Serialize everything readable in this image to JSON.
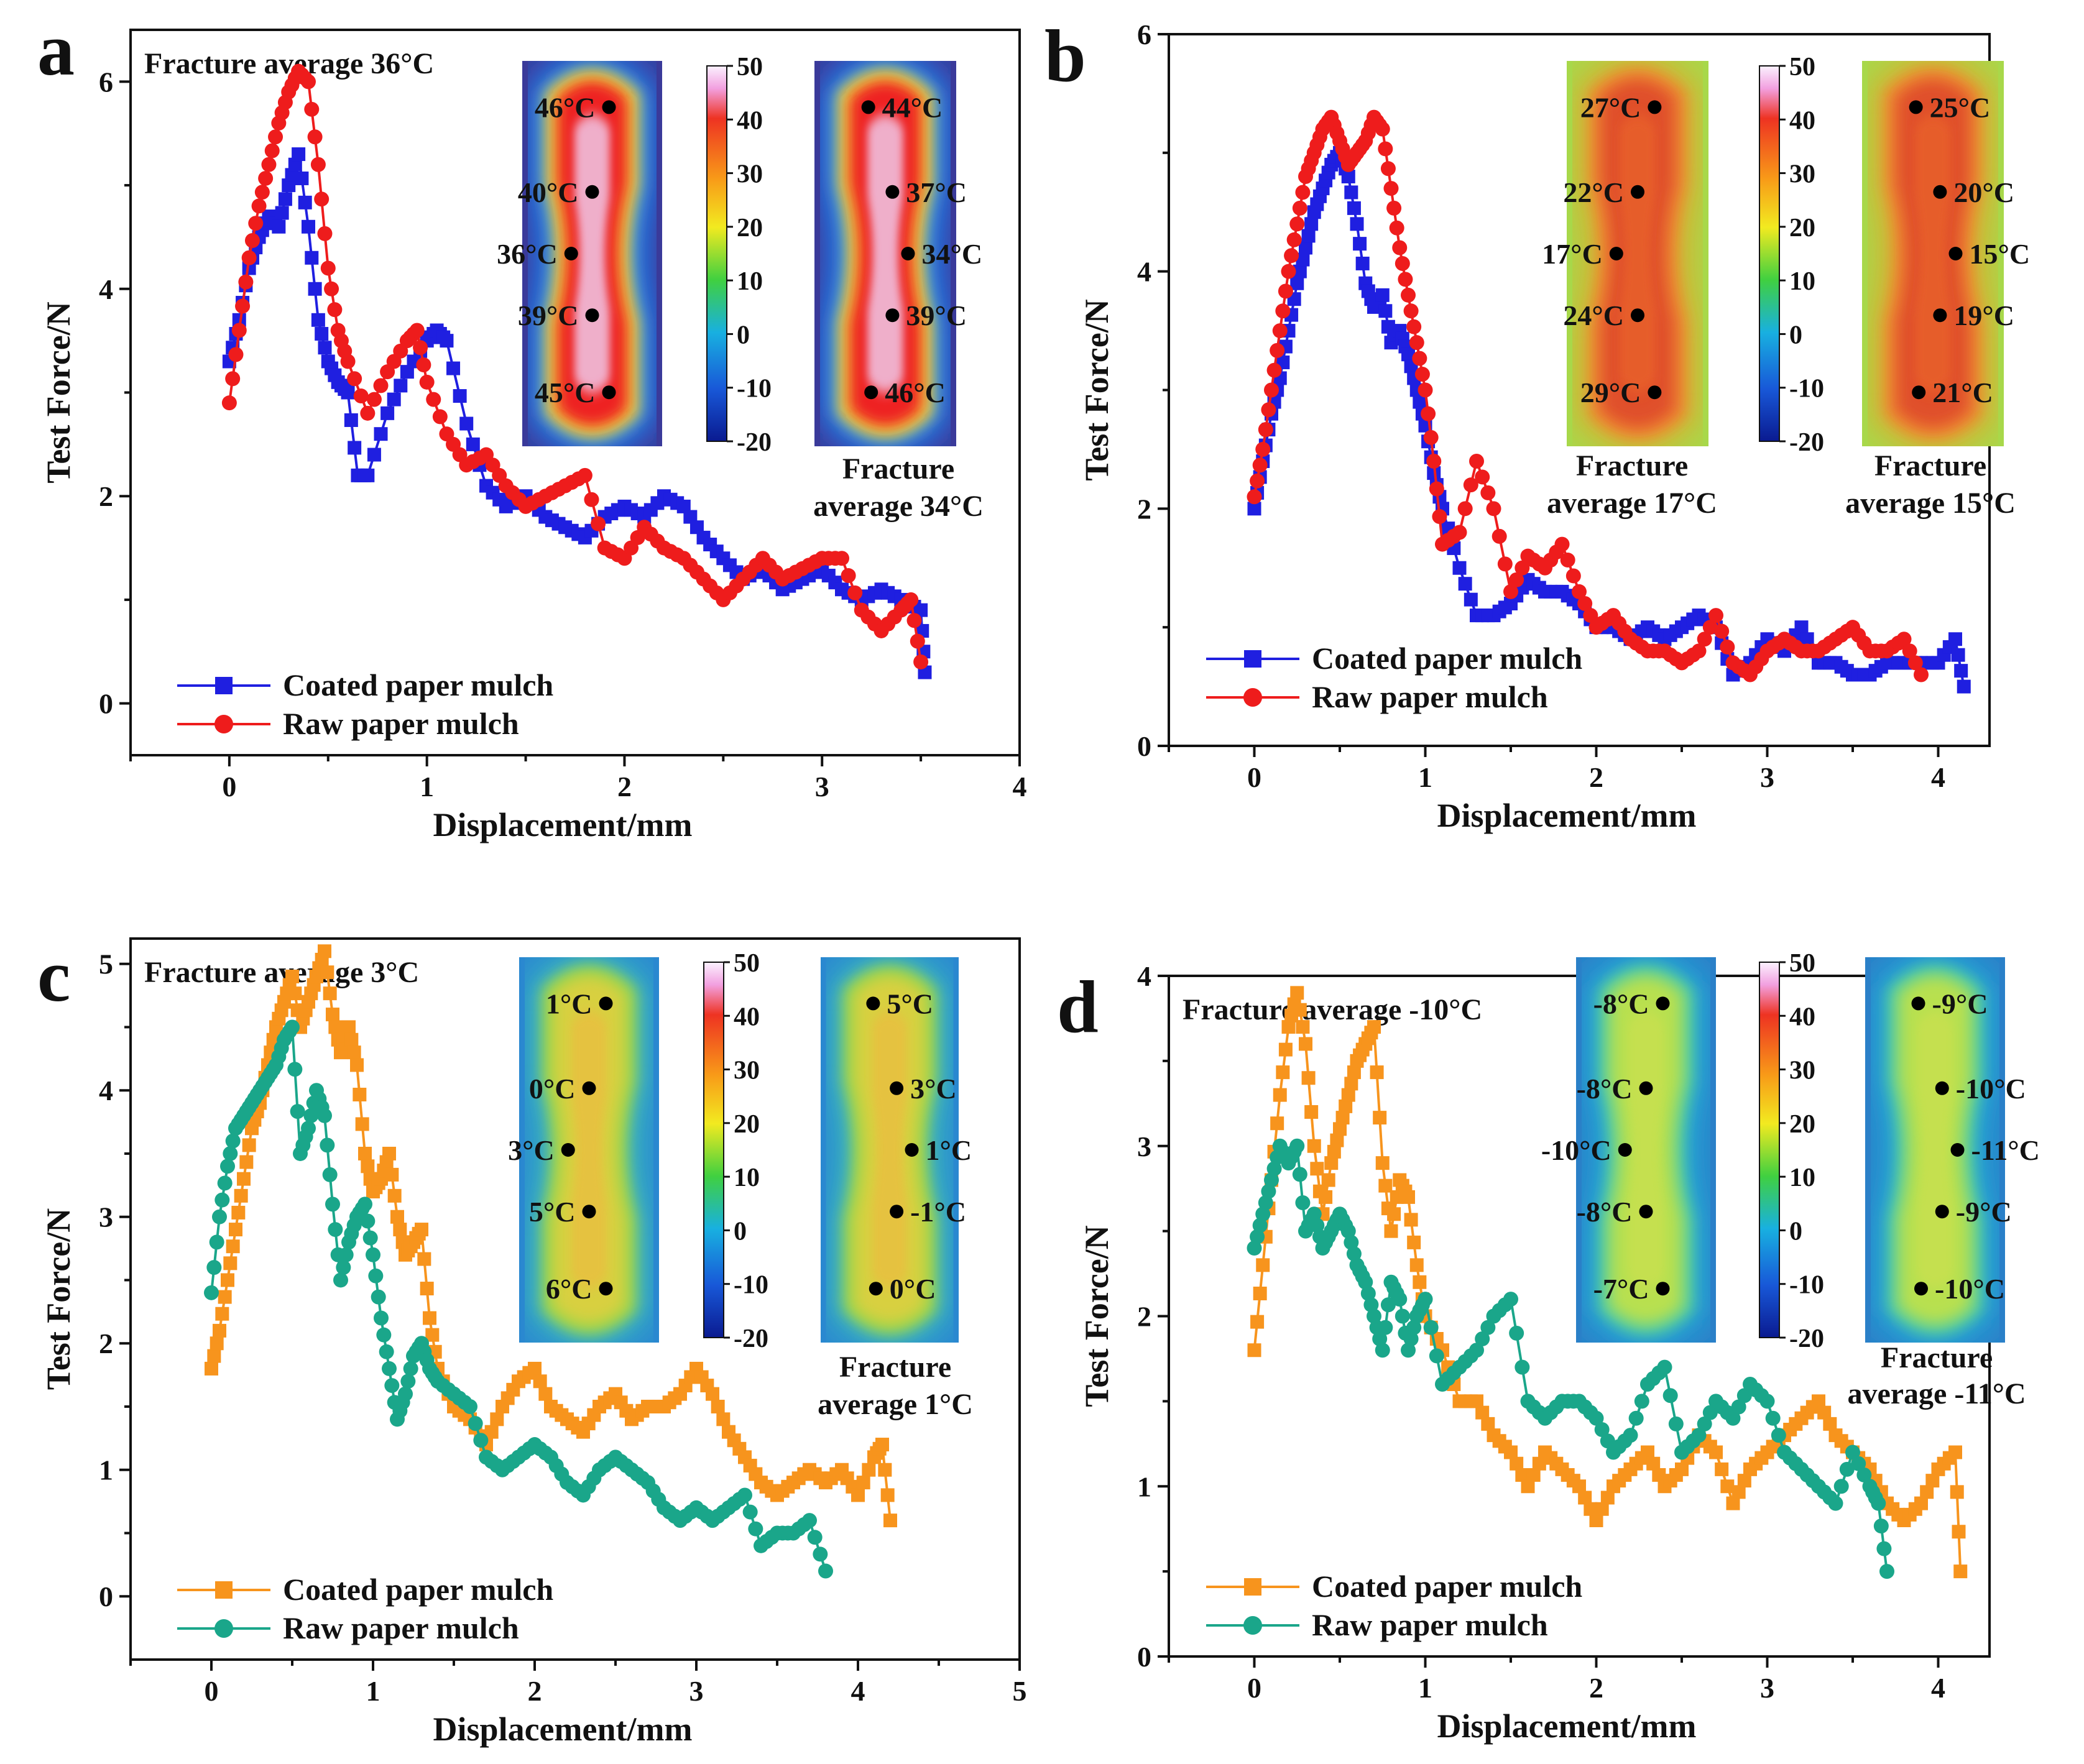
{
  "legend_labels": {
    "coated": "Coated paper mulch",
    "raw": "Raw paper mulch"
  },
  "colorbar": {
    "ticks": [
      "50",
      "40",
      "30",
      "20",
      "10",
      "0",
      "-10",
      "-20"
    ]
  },
  "chart_data": [
    {
      "panel": "a",
      "type": "line",
      "xlabel": "Displacement/mm",
      "ylabel": "Test Force/N",
      "xlim": [
        -0.5,
        4
      ],
      "ylim": [
        -0.5,
        6.5
      ],
      "xticks": [
        "0",
        "1",
        "2",
        "3",
        "4"
      ],
      "yticks": [
        "0",
        "2",
        "4",
        "6"
      ],
      "title": "Fracture  average 36°C",
      "inset_caption": [
        "Fracture",
        "average 34°C"
      ],
      "inset_style": "hot",
      "temps_left": [
        "46°C",
        "40°C",
        "36°C",
        "39°C",
        "45°C"
      ],
      "temps_right": [
        "44°C",
        "37°C",
        "34°C",
        "39°C",
        "46°C"
      ],
      "series": [
        {
          "name": "Coated paper mulch",
          "color": "#1f1fe0",
          "marker": "square",
          "x": [
            0,
            0.05,
            0.1,
            0.15,
            0.2,
            0.25,
            0.3,
            0.35,
            0.4,
            0.45,
            0.5,
            0.55,
            0.6,
            0.65,
            0.7,
            0.8,
            0.9,
            1.0,
            1.05,
            1.1,
            1.2,
            1.3,
            1.4,
            1.5,
            1.6,
            1.7,
            1.8,
            1.9,
            2.0,
            2.1,
            2.2,
            2.3,
            2.4,
            2.5,
            2.6,
            2.7,
            2.8,
            2.9,
            3.0,
            3.1,
            3.2,
            3.3,
            3.4,
            3.5,
            3.52
          ],
          "y": [
            3.3,
            3.7,
            4.2,
            4.5,
            4.7,
            4.6,
            5.0,
            5.3,
            4.6,
            3.7,
            3.3,
            3.1,
            3.0,
            2.2,
            2.2,
            2.8,
            3.2,
            3.5,
            3.6,
            3.5,
            2.7,
            2.1,
            1.9,
            2.0,
            1.8,
            1.7,
            1.6,
            1.8,
            1.9,
            1.8,
            2.0,
            1.9,
            1.6,
            1.4,
            1.2,
            1.3,
            1.1,
            1.2,
            1.3,
            1.1,
            1.0,
            1.1,
            1.0,
            0.9,
            0.3
          ]
        },
        {
          "name": "Raw paper mulch",
          "color": "#ee1c1c",
          "marker": "circle",
          "x": [
            0,
            0.05,
            0.1,
            0.15,
            0.2,
            0.25,
            0.3,
            0.35,
            0.4,
            0.45,
            0.5,
            0.55,
            0.6,
            0.7,
            0.8,
            0.9,
            0.95,
            1.0,
            1.1,
            1.2,
            1.3,
            1.4,
            1.5,
            1.6,
            1.7,
            1.8,
            1.9,
            2.0,
            2.1,
            2.2,
            2.3,
            2.4,
            2.5,
            2.6,
            2.7,
            2.8,
            2.9,
            3.0,
            3.1,
            3.2,
            3.3,
            3.4,
            3.45,
            3.5
          ],
          "y": [
            2.9,
            3.6,
            4.3,
            4.8,
            5.2,
            5.6,
            5.9,
            6.1,
            6.0,
            5.2,
            4.2,
            3.6,
            3.3,
            2.8,
            3.2,
            3.5,
            3.6,
            3.1,
            2.6,
            2.3,
            2.4,
            2.1,
            1.9,
            2.0,
            2.1,
            2.2,
            1.5,
            1.4,
            1.7,
            1.5,
            1.4,
            1.2,
            1.0,
            1.2,
            1.4,
            1.2,
            1.3,
            1.4,
            1.4,
            0.9,
            0.7,
            0.9,
            1.0,
            0.4
          ]
        }
      ]
    },
    {
      "panel": "b",
      "type": "line",
      "xlabel": "Displacement/mm",
      "ylabel": "Test Force/N",
      "xlim": [
        -0.5,
        4.3
      ],
      "ylim": [
        0,
        6
      ],
      "xticks": [
        "0",
        "1",
        "2",
        "3",
        "4"
      ],
      "yticks": [
        "0",
        "2",
        "4",
        "6"
      ],
      "title": "",
      "inset_captions": [
        [
          "Fracture",
          "average 17°C"
        ],
        [
          "Fracture",
          "average 15°C"
        ]
      ],
      "inset_style": "warm",
      "temps_left": [
        "27°C",
        "22°C",
        "17°C",
        "24°C",
        "29°C"
      ],
      "temps_right": [
        "25°C",
        "20°C",
        "15°C",
        "19°C",
        "21°C"
      ],
      "series": [
        {
          "name": "Coated paper mulch",
          "color": "#1f1fe0",
          "marker": "square",
          "x": [
            0,
            0.05,
            0.1,
            0.15,
            0.2,
            0.25,
            0.3,
            0.35,
            0.4,
            0.45,
            0.5,
            0.55,
            0.6,
            0.65,
            0.7,
            0.75,
            0.8,
            0.85,
            0.9,
            0.95,
            1.0,
            1.05,
            1.1,
            1.2,
            1.3,
            1.4,
            1.5,
            1.6,
            1.7,
            1.8,
            1.9,
            2.0,
            2.1,
            2.2,
            2.3,
            2.4,
            2.5,
            2.6,
            2.7,
            2.8,
            2.9,
            3.0,
            3.1,
            3.2,
            3.3,
            3.4,
            3.5,
            3.6,
            3.7,
            3.8,
            3.9,
            4.0,
            4.1,
            4.15
          ],
          "y": [
            2.0,
            2.4,
            2.8,
            3.1,
            3.5,
            3.9,
            4.2,
            4.5,
            4.7,
            4.9,
            5.0,
            4.8,
            4.4,
            3.9,
            3.7,
            3.8,
            3.4,
            3.5,
            3.3,
            3.0,
            2.7,
            2.3,
            2.0,
            1.5,
            1.1,
            1.1,
            1.2,
            1.4,
            1.3,
            1.3,
            1.2,
            1.0,
            1.0,
            0.9,
            1.0,
            0.9,
            1.0,
            1.1,
            1.0,
            0.6,
            0.7,
            0.9,
            0.8,
            1.0,
            0.7,
            0.7,
            0.6,
            0.6,
            0.7,
            0.7,
            0.7,
            0.7,
            0.9,
            0.5
          ]
        },
        {
          "name": "Raw paper mulch",
          "color": "#ee1c1c",
          "marker": "circle",
          "x": [
            0,
            0.05,
            0.1,
            0.15,
            0.2,
            0.25,
            0.3,
            0.35,
            0.4,
            0.45,
            0.5,
            0.55,
            0.6,
            0.65,
            0.7,
            0.75,
            0.8,
            0.85,
            0.9,
            0.95,
            1.0,
            1.05,
            1.1,
            1.2,
            1.3,
            1.4,
            1.5,
            1.6,
            1.7,
            1.8,
            1.9,
            2.0,
            2.1,
            2.2,
            2.3,
            2.4,
            2.5,
            2.6,
            2.7,
            2.8,
            2.9,
            3.0,
            3.1,
            3.2,
            3.3,
            3.4,
            3.5,
            3.6,
            3.7,
            3.8,
            3.9
          ],
          "y": [
            2.1,
            2.5,
            3.0,
            3.5,
            4.0,
            4.4,
            4.8,
            5.0,
            5.2,
            5.3,
            5.1,
            4.9,
            5.0,
            5.1,
            5.3,
            5.2,
            4.7,
            4.2,
            3.8,
            3.4,
            3.0,
            2.4,
            1.7,
            1.8,
            2.4,
            2.0,
            1.3,
            1.6,
            1.5,
            1.7,
            1.3,
            1.0,
            1.1,
            0.9,
            0.8,
            0.8,
            0.7,
            0.8,
            1.1,
            0.7,
            0.6,
            0.8,
            0.9,
            0.8,
            0.8,
            0.9,
            1.0,
            0.8,
            0.8,
            0.9,
            0.6
          ]
        }
      ]
    },
    {
      "panel": "c",
      "type": "line",
      "xlabel": "Displacement/mm",
      "ylabel": "Test Force/N",
      "xlim": [
        -0.5,
        5
      ],
      "ylim": [
        -0.5,
        5.2
      ],
      "xticks": [
        "0",
        "1",
        "2",
        "3",
        "4",
        "5"
      ],
      "yticks": [
        "0",
        "1",
        "2",
        "3",
        "4",
        "5"
      ],
      "title": "Fracture  average 3°C",
      "inset_caption": [
        "Fracture",
        "average 1°C"
      ],
      "inset_style": "cool",
      "temps_left": [
        "1°C",
        "0°C",
        "3°C",
        "5°C",
        "6°C"
      ],
      "temps_right": [
        "5°C",
        "3°C",
        "1°C",
        "-1°C",
        "0°C"
      ],
      "series": [
        {
          "name": "Coated paper mulch",
          "color": "#f7941d",
          "marker": "square",
          "x": [
            0,
            0.05,
            0.1,
            0.15,
            0.2,
            0.25,
            0.3,
            0.35,
            0.4,
            0.45,
            0.5,
            0.55,
            0.6,
            0.65,
            0.7,
            0.75,
            0.8,
            0.85,
            0.9,
            0.95,
            1.0,
            1.05,
            1.1,
            1.15,
            1.2,
            1.25,
            1.3,
            1.35,
            1.4,
            1.5,
            1.6,
            1.7,
            1.8,
            1.9,
            2.0,
            2.1,
            2.2,
            2.3,
            2.4,
            2.5,
            2.6,
            2.7,
            2.8,
            2.9,
            3.0,
            3.1,
            3.2,
            3.3,
            3.4,
            3.5,
            3.6,
            3.7,
            3.8,
            3.9,
            4.0,
            4.1,
            4.15,
            4.2
          ],
          "y": [
            1.8,
            2.1,
            2.5,
            2.9,
            3.3,
            3.7,
            3.9,
            4.2,
            4.5,
            4.7,
            4.9,
            4.5,
            4.7,
            4.9,
            5.1,
            4.6,
            4.3,
            4.5,
            4.2,
            3.5,
            3.2,
            3.3,
            3.5,
            3.0,
            2.7,
            2.8,
            2.9,
            2.2,
            1.8,
            1.5,
            1.4,
            1.2,
            1.5,
            1.7,
            1.8,
            1.5,
            1.4,
            1.3,
            1.5,
            1.6,
            1.4,
            1.5,
            1.5,
            1.6,
            1.8,
            1.6,
            1.3,
            1.1,
            0.9,
            0.8,
            0.9,
            1.0,
            0.9,
            1.0,
            0.8,
            1.1,
            1.2,
            0.6
          ]
        },
        {
          "name": "Raw paper mulch",
          "color": "#1aa68a",
          "marker": "circle",
          "x": [
            0,
            0.05,
            0.1,
            0.15,
            0.2,
            0.25,
            0.3,
            0.35,
            0.4,
            0.45,
            0.5,
            0.55,
            0.6,
            0.65,
            0.7,
            0.75,
            0.8,
            0.85,
            0.9,
            0.95,
            1.0,
            1.05,
            1.1,
            1.15,
            1.2,
            1.25,
            1.3,
            1.35,
            1.4,
            1.5,
            1.6,
            1.7,
            1.8,
            1.9,
            2.0,
            2.1,
            2.2,
            2.3,
            2.4,
            2.5,
            2.6,
            2.7,
            2.8,
            2.9,
            3.0,
            3.1,
            3.2,
            3.3,
            3.4,
            3.5,
            3.6,
            3.7,
            3.8
          ],
          "y": [
            2.4,
            3.0,
            3.4,
            3.7,
            3.8,
            3.9,
            4.0,
            4.1,
            4.2,
            4.4,
            4.5,
            3.5,
            3.7,
            4.0,
            3.8,
            3.1,
            2.5,
            2.8,
            3.0,
            3.1,
            2.7,
            2.2,
            1.8,
            1.4,
            1.6,
            1.9,
            2.0,
            1.8,
            1.7,
            1.6,
            1.5,
            1.1,
            1.0,
            1.1,
            1.2,
            1.1,
            0.9,
            0.8,
            1.0,
            1.1,
            1.0,
            0.9,
            0.7,
            0.6,
            0.7,
            0.6,
            0.7,
            0.8,
            0.4,
            0.5,
            0.5,
            0.6,
            0.2
          ]
        }
      ]
    },
    {
      "panel": "d",
      "type": "line",
      "xlabel": "Displacement/mm",
      "ylabel": "Test Force/N",
      "xlim": [
        -0.5,
        4.3
      ],
      "ylim": [
        0,
        4
      ],
      "xticks": [
        "0",
        "1",
        "2",
        "3",
        "4"
      ],
      "yticks": [
        "0",
        "1",
        "2",
        "3",
        "4"
      ],
      "title": "Fracture  average -10°C",
      "inset_caption": [
        "Fracture",
        "average -11°C"
      ],
      "inset_style": "cold",
      "temps_left": [
        "-8°C",
        "-8°C",
        "-10°C",
        "-8°C",
        "-7°C"
      ],
      "temps_right": [
        "-9°C",
        "-10°C",
        "-11°C",
        "-9°C",
        "-10°C"
      ],
      "series": [
        {
          "name": "Coated paper mulch",
          "color": "#f7941d",
          "marker": "square",
          "x": [
            0,
            0.05,
            0.1,
            0.15,
            0.2,
            0.25,
            0.3,
            0.35,
            0.4,
            0.45,
            0.5,
            0.55,
            0.6,
            0.65,
            0.7,
            0.75,
            0.8,
            0.85,
            0.9,
            0.95,
            1.0,
            1.1,
            1.2,
            1.3,
            1.4,
            1.5,
            1.6,
            1.7,
            1.8,
            1.9,
            2.0,
            2.1,
            2.2,
            2.3,
            2.4,
            2.5,
            2.6,
            2.7,
            2.8,
            2.9,
            3.0,
            3.1,
            3.2,
            3.3,
            3.4,
            3.5,
            3.6,
            3.7,
            3.8,
            3.9,
            4.0,
            4.1,
            4.13
          ],
          "y": [
            1.8,
            2.3,
            2.8,
            3.3,
            3.7,
            3.9,
            3.6,
            3.0,
            2.6,
            2.9,
            3.1,
            3.3,
            3.5,
            3.6,
            3.7,
            2.9,
            2.5,
            2.8,
            2.7,
            2.3,
            2.0,
            1.8,
            1.5,
            1.5,
            1.3,
            1.2,
            1.0,
            1.2,
            1.1,
            1.0,
            0.8,
            1.0,
            1.1,
            1.2,
            1.0,
            1.1,
            1.3,
            1.2,
            0.9,
            1.1,
            1.2,
            1.3,
            1.4,
            1.5,
            1.3,
            1.2,
            1.1,
            0.9,
            0.8,
            0.9,
            1.1,
            1.2,
            0.5
          ]
        },
        {
          "name": "Raw paper mulch",
          "color": "#1aa68a",
          "marker": "circle",
          "x": [
            0,
            0.05,
            0.1,
            0.15,
            0.2,
            0.25,
            0.3,
            0.35,
            0.4,
            0.45,
            0.5,
            0.55,
            0.6,
            0.65,
            0.7,
            0.75,
            0.8,
            0.85,
            0.9,
            0.95,
            1.0,
            1.1,
            1.2,
            1.3,
            1.4,
            1.5,
            1.6,
            1.7,
            1.8,
            1.9,
            2.0,
            2.1,
            2.2,
            2.3,
            2.4,
            2.5,
            2.6,
            2.7,
            2.8,
            2.9,
            3.0,
            3.1,
            3.2,
            3.3,
            3.4,
            3.5,
            3.6,
            3.65,
            3.7
          ],
          "y": [
            2.4,
            2.6,
            2.8,
            3.0,
            2.9,
            3.0,
            2.5,
            2.6,
            2.4,
            2.5,
            2.6,
            2.5,
            2.3,
            2.2,
            2.0,
            1.8,
            2.2,
            2.1,
            1.8,
            2.0,
            2.1,
            1.6,
            1.7,
            1.8,
            2.0,
            2.1,
            1.5,
            1.4,
            1.5,
            1.5,
            1.4,
            1.2,
            1.3,
            1.6,
            1.7,
            1.2,
            1.3,
            1.5,
            1.4,
            1.6,
            1.5,
            1.2,
            1.1,
            1.0,
            0.9,
            1.2,
            1.0,
            0.9,
            0.5
          ]
        }
      ]
    }
  ]
}
